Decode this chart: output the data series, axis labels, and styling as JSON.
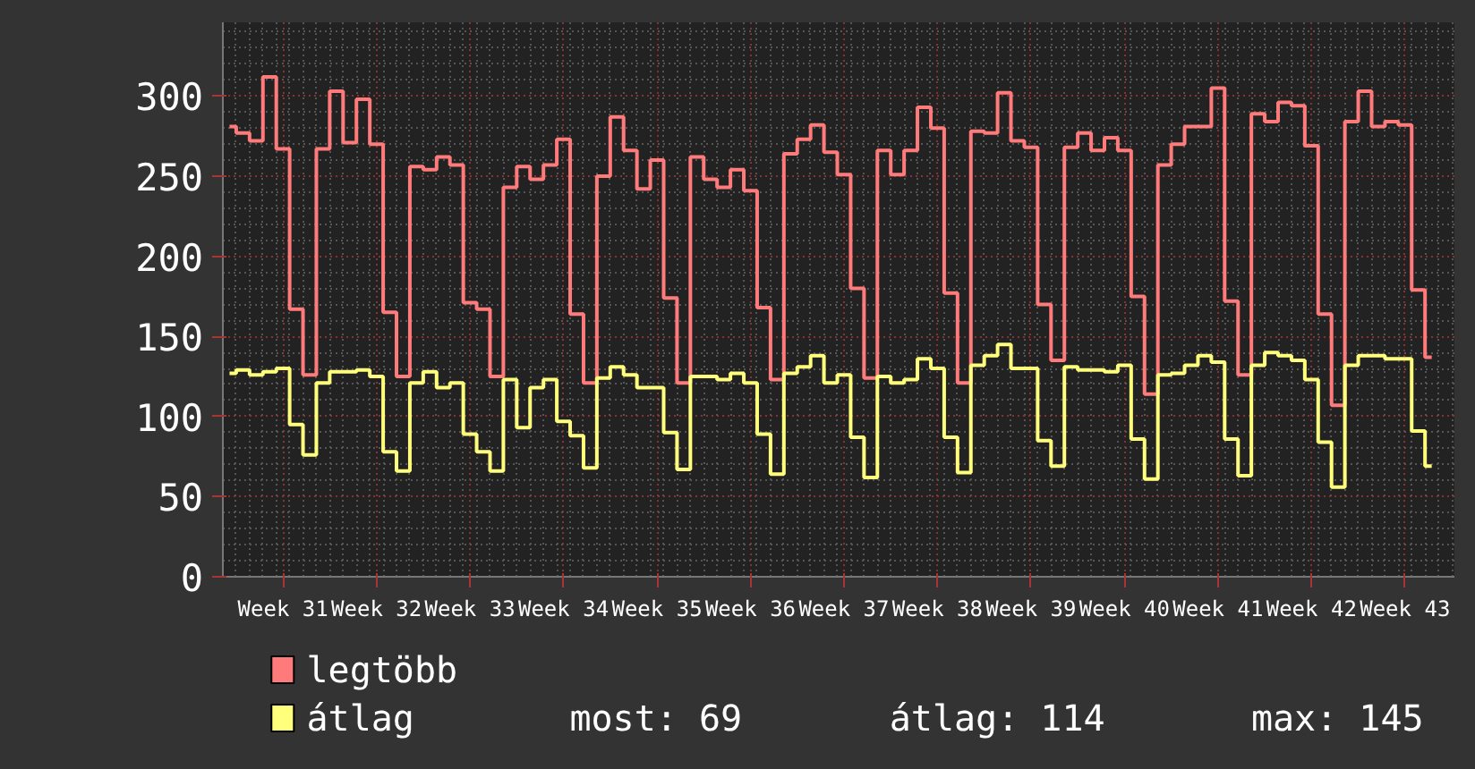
{
  "chart_data": {
    "type": "step",
    "categories": [
      null,
      null,
      null,
      null,
      "Week 31",
      null,
      null,
      null,
      null,
      null,
      null,
      "Week 32",
      null,
      null,
      null,
      null,
      null,
      null,
      "Week 33",
      null,
      null,
      null,
      null,
      null,
      null,
      "Week 34",
      null,
      null,
      null,
      null,
      null,
      null,
      "Week 35",
      null,
      null,
      null,
      null,
      null,
      null,
      "Week 36",
      null,
      null,
      null,
      null,
      null,
      null,
      "Week 37",
      null,
      null,
      null,
      null,
      null,
      null,
      "Week 38",
      null,
      null,
      null,
      null,
      null,
      null,
      "Week 39",
      null,
      null,
      null,
      null,
      null,
      null,
      "Week 40",
      null,
      null,
      null,
      null,
      null,
      null,
      "Week 41",
      null,
      null,
      null,
      null,
      null,
      null,
      "Week 42",
      null,
      null,
      null,
      null,
      null,
      null,
      "Week 43",
      null,
      null
    ],
    "series": [
      {
        "name": "legtöbb",
        "color": "#ff7b7b",
        "values": [
          281,
          277,
          272,
          312,
          267,
          167,
          126,
          267,
          303,
          271,
          298,
          270,
          165,
          125,
          256,
          254,
          262,
          257,
          171,
          167,
          125,
          243,
          256,
          248,
          257,
          273,
          164,
          121,
          250,
          287,
          266,
          242,
          260,
          174,
          121,
          262,
          248,
          243,
          254,
          241,
          168,
          123,
          264,
          273,
          282,
          265,
          251,
          180,
          124,
          266,
          251,
          266,
          293,
          280,
          177,
          121,
          278,
          277,
          302,
          272,
          268,
          170,
          135,
          268,
          277,
          266,
          274,
          266,
          175,
          114,
          257,
          270,
          281,
          281,
          305,
          172,
          126,
          289,
          284,
          296,
          294,
          269,
          164,
          107,
          284,
          303,
          281,
          284,
          282,
          179,
          137
        ]
      },
      {
        "name": "átlag",
        "color": "#ffff7b",
        "values": [
          127,
          129,
          126,
          128,
          130,
          95,
          76,
          121,
          128,
          128,
          129,
          125,
          78,
          66,
          121,
          128,
          118,
          121,
          89,
          78,
          66,
          123,
          93,
          118,
          123,
          97,
          88,
          68,
          124,
          131,
          126,
          118,
          118,
          90,
          67,
          125,
          125,
          123,
          127,
          121,
          89,
          64,
          127,
          131,
          138,
          121,
          126,
          87,
          62,
          125,
          121,
          123,
          136,
          130,
          87,
          65,
          132,
          138,
          145,
          130,
          130,
          85,
          69,
          131,
          129,
          129,
          128,
          132,
          86,
          61,
          126,
          127,
          132,
          138,
          134,
          86,
          63,
          132,
          140,
          138,
          135,
          123,
          84,
          56,
          132,
          138,
          138,
          136,
          136,
          91,
          69
        ]
      }
    ],
    "ylim": [
      0,
      346
    ],
    "yticks": [
      0,
      50,
      100,
      150,
      200,
      250,
      300
    ],
    "grid": true,
    "legend": "bottom",
    "annotations": [
      "most: 69",
      "átlag: 114",
      "max: 145"
    ]
  }
}
